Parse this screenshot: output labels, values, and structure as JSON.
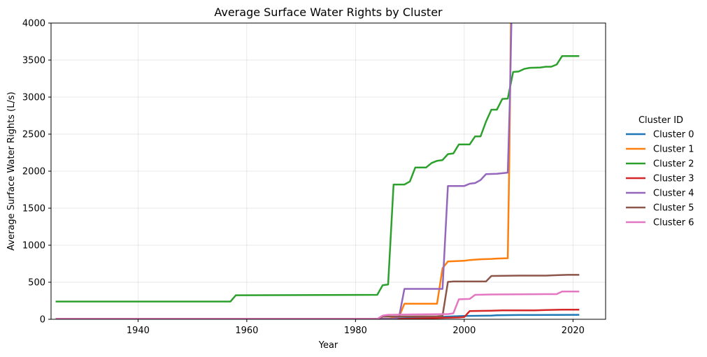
{
  "chart_data": {
    "type": "line",
    "title": "Average Surface Water Rights by Cluster",
    "xlabel": "Year",
    "ylabel": "Average Surface Water Rights (L/s)",
    "xlim": [
      1924,
      2026
    ],
    "ylim": [
      0,
      4000
    ],
    "x_ticks": [
      1940,
      1960,
      1980,
      2000,
      2020
    ],
    "y_ticks": [
      0,
      500,
      1000,
      1500,
      2000,
      2500,
      3000,
      3500,
      4000
    ],
    "grid": true,
    "legend": {
      "title": "Cluster ID",
      "placement": "right-outside"
    },
    "series": [
      {
        "name": "Cluster 0",
        "color": "#1f77b4",
        "points": [
          [
            1925,
            5
          ],
          [
            1987,
            5
          ],
          [
            1990,
            20
          ],
          [
            1995,
            30
          ],
          [
            2000,
            45
          ],
          [
            2005,
            50
          ],
          [
            2006,
            55
          ],
          [
            2010,
            58
          ],
          [
            2021,
            60
          ]
        ]
      },
      {
        "name": "Cluster 1",
        "color": "#ff7f0e",
        "points": [
          [
            1925,
            5
          ],
          [
            1986,
            5
          ],
          [
            1988,
            30
          ],
          [
            1989,
            210
          ],
          [
            1995,
            210
          ],
          [
            1996,
            690
          ],
          [
            1997,
            780
          ],
          [
            2000,
            790
          ],
          [
            2001,
            800
          ],
          [
            2003,
            810
          ],
          [
            2005,
            815
          ],
          [
            2006,
            820
          ],
          [
            2008,
            825
          ],
          [
            2008.3,
            2200
          ],
          [
            2008.6,
            4100
          ]
        ]
      },
      {
        "name": "Cluster 2",
        "color": "#2ca02c",
        "points": [
          [
            1925,
            240
          ],
          [
            1957,
            240
          ],
          [
            1958,
            325
          ],
          [
            1984,
            330
          ],
          [
            1985,
            460
          ],
          [
            1986,
            470
          ],
          [
            1987,
            1820
          ],
          [
            1989,
            1820
          ],
          [
            1990,
            1860
          ],
          [
            1991,
            2050
          ],
          [
            1993,
            2050
          ],
          [
            1994,
            2110
          ],
          [
            1995,
            2140
          ],
          [
            1996,
            2150
          ],
          [
            1997,
            2230
          ],
          [
            1998,
            2240
          ],
          [
            1999,
            2360
          ],
          [
            2001,
            2360
          ],
          [
            2002,
            2470
          ],
          [
            2003,
            2470
          ],
          [
            2004,
            2670
          ],
          [
            2005,
            2830
          ],
          [
            2006,
            2830
          ],
          [
            2007,
            2975
          ],
          [
            2008,
            2980
          ],
          [
            2009,
            3340
          ],
          [
            2010,
            3345
          ],
          [
            2011,
            3380
          ],
          [
            2012,
            3395
          ],
          [
            2014,
            3400
          ],
          [
            2015,
            3410
          ],
          [
            2016,
            3410
          ],
          [
            2017,
            3440
          ],
          [
            2018,
            3555
          ],
          [
            2021,
            3555
          ]
        ]
      },
      {
        "name": "Cluster 3",
        "color": "#d62728",
        "points": [
          [
            1925,
            5
          ],
          [
            1988,
            5
          ],
          [
            1999,
            25
          ],
          [
            2000,
            30
          ],
          [
            2001,
            110
          ],
          [
            2005,
            115
          ],
          [
            2007,
            120
          ],
          [
            2013,
            120
          ],
          [
            2015,
            125
          ],
          [
            2018,
            130
          ],
          [
            2021,
            130
          ]
        ]
      },
      {
        "name": "Cluster 4",
        "color": "#9467bd",
        "points": [
          [
            1925,
            5
          ],
          [
            1987,
            5
          ],
          [
            1988,
            30
          ],
          [
            1989,
            410
          ],
          [
            1995,
            410
          ],
          [
            1996,
            410
          ],
          [
            1997,
            1800
          ],
          [
            2000,
            1800
          ],
          [
            2001,
            1830
          ],
          [
            2002,
            1840
          ],
          [
            2003,
            1880
          ],
          [
            2004,
            1960
          ],
          [
            2006,
            1965
          ],
          [
            2008,
            1980
          ],
          [
            2008.4,
            3000
          ],
          [
            2008.7,
            4100
          ]
        ]
      },
      {
        "name": "Cluster 5",
        "color": "#8c564b",
        "points": [
          [
            1925,
            5
          ],
          [
            1984,
            5
          ],
          [
            1985,
            35
          ],
          [
            1995,
            40
          ],
          [
            1996,
            45
          ],
          [
            1997,
            505
          ],
          [
            1998,
            510
          ],
          [
            2004,
            510
          ],
          [
            2005,
            585
          ],
          [
            2010,
            590
          ],
          [
            2015,
            590
          ],
          [
            2017,
            595
          ],
          [
            2019,
            600
          ],
          [
            2021,
            600
          ]
        ]
      },
      {
        "name": "Cluster 6",
        "color": "#e377c2",
        "points": [
          [
            1925,
            5
          ],
          [
            1984,
            5
          ],
          [
            1985,
            50
          ],
          [
            1986,
            60
          ],
          [
            1990,
            65
          ],
          [
            1997,
            70
          ],
          [
            1998,
            80
          ],
          [
            1999,
            270
          ],
          [
            2001,
            275
          ],
          [
            2002,
            330
          ],
          [
            2005,
            335
          ],
          [
            2015,
            340
          ],
          [
            2017,
            340
          ],
          [
            2018,
            375
          ],
          [
            2021,
            375
          ]
        ]
      }
    ]
  }
}
